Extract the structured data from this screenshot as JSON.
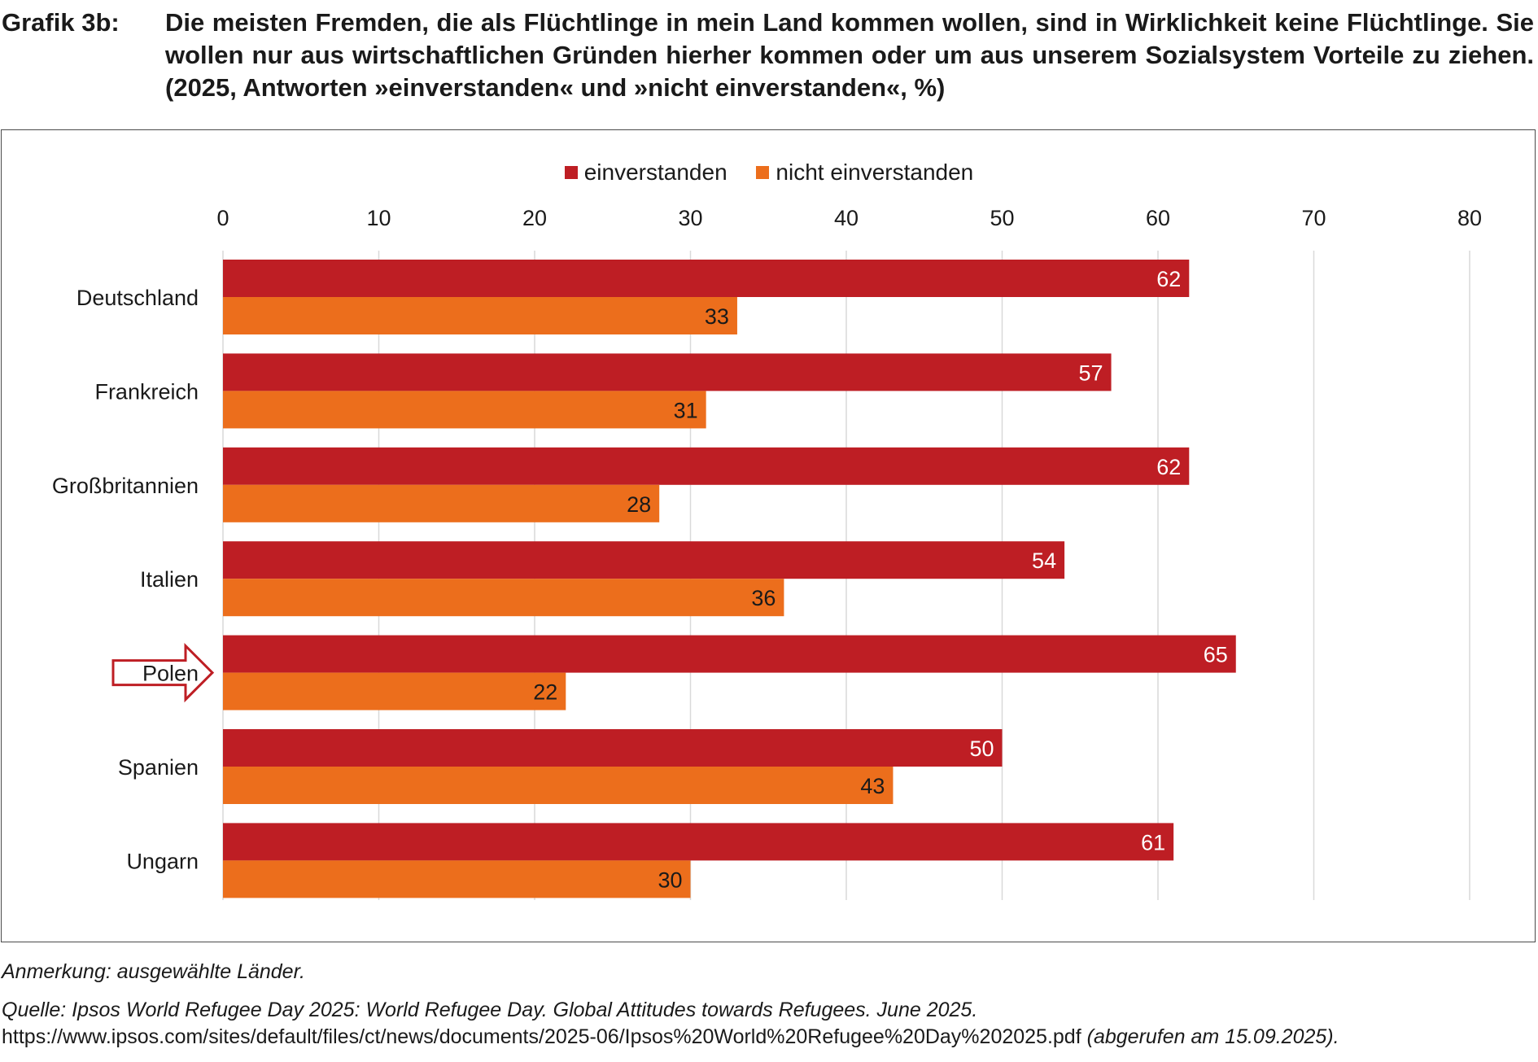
{
  "header": {
    "label": "Grafik 3b:",
    "title": "Die meisten Fremden, die als Flüchtlinge in mein Land kommen wollen, sind in Wirklichkeit keine Flüchtlinge. Sie wollen nur aus wirtschaftlichen Gründen hierher kommen oder um aus unserem Sozialsystem Vorteile zu ziehen. (2025, Antworten »einverstanden« und »nicht einverstanden«, %)"
  },
  "legend": {
    "items": [
      {
        "label": "einverstanden",
        "color": "#be1e24"
      },
      {
        "label": "nicht einverstanden",
        "color": "#ec6e1c"
      }
    ]
  },
  "chart_data": {
    "type": "bar",
    "orientation": "horizontal",
    "categories": [
      "Deutschland",
      "Frankreich",
      "Großbritannien",
      "Italien",
      "Polen",
      "Spanien",
      "Ungarn"
    ],
    "highlighted_category": "Polen",
    "series": [
      {
        "name": "einverstanden",
        "color": "#be1e24",
        "values": [
          62,
          57,
          62,
          54,
          65,
          50,
          61
        ]
      },
      {
        "name": "nicht einverstanden",
        "color": "#ec6e1c",
        "values": [
          33,
          31,
          28,
          36,
          22,
          43,
          30
        ]
      }
    ],
    "xlim": [
      0,
      80
    ],
    "xticks": [
      0,
      10,
      20,
      30,
      40,
      50,
      60,
      70,
      80
    ],
    "axis_position": "top",
    "grid": true,
    "legend_position": "top-center",
    "title": "",
    "xlabel": "",
    "ylabel": ""
  },
  "footer": {
    "note": "Anmerkung: ausgewählte Länder.",
    "source_prefix": "Quelle: Ipsos World Refugee Day 2025: World Refugee Day. Global Attitudes towards Refugees. June 2025.",
    "source_url": "https://www.ipsos.com/sites/default/files/ct/news/documents/2025-06/Ipsos%20World%20Refugee%20Day%202025.pdf",
    "source_suffix": "(abgerufen am 15.09.2025)."
  }
}
